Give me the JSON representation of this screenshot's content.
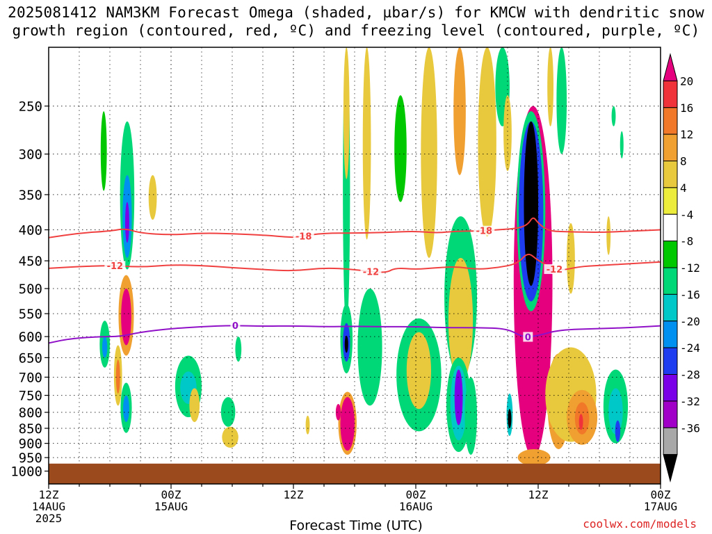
{
  "title_line1": "2025081412 NAM3KM Forecast Omega (shaded, µbar/s) for KMCW with dendritic snow",
  "title_line2": "growth region (contoured, red, ºC) and freezing level (contoured, purple, ºC)",
  "credit": "coolwx.com/models",
  "chart_data": {
    "type": "heatmap",
    "xlabel": "Forecast Time (UTC)",
    "ylabel": "",
    "x_range_hours": [
      0,
      60
    ],
    "x_ticks": [
      {
        "hour": 0,
        "label": "12Z",
        "sub": "14AUG",
        "sub2": "2025"
      },
      {
        "hour": 12,
        "label": "00Z",
        "sub": "15AUG",
        "sub2": ""
      },
      {
        "hour": 24,
        "label": "12Z",
        "sub": "",
        "sub2": ""
      },
      {
        "hour": 36,
        "label": "00Z",
        "sub": "16AUG",
        "sub2": ""
      },
      {
        "hour": 48,
        "label": "12Z",
        "sub": "",
        "sub2": ""
      },
      {
        "hour": 60,
        "label": "00Z",
        "sub": "17AUG",
        "sub2": ""
      }
    ],
    "y_ticks_hpa": [
      250,
      300,
      350,
      400,
      450,
      500,
      550,
      600,
      650,
      700,
      750,
      800,
      850,
      900,
      950,
      1000
    ],
    "y_range_hpa": [
      200,
      1050
    ],
    "ground_level_hpa": 972,
    "colorbar": {
      "labels": [
        "20",
        "16",
        "12",
        "8",
        "4",
        "-4",
        "-8",
        "-12",
        "-16",
        "-20",
        "-24",
        "-28",
        "-32",
        "-36"
      ],
      "colors": [
        "#e5007e",
        "#f0323a",
        "#f07828",
        "#f0a030",
        "#e8c83c",
        "#ecec3c",
        "#ffffff",
        "#00c800",
        "#00d878",
        "#00c8c8",
        "#0090f0",
        "#1e3cf0",
        "#7a00e8",
        "#a000c8",
        "#a8a8a8",
        "#000000"
      ]
    },
    "contours": [
      {
        "label": "-18",
        "color": "#f04040",
        "values_hpa": [
          [
            0,
            412
          ],
          [
            3,
            405
          ],
          [
            6,
            402
          ],
          [
            7.5,
            398
          ],
          [
            9,
            405
          ],
          [
            12,
            408
          ],
          [
            15,
            405
          ],
          [
            18,
            406
          ],
          [
            21,
            408
          ],
          [
            24,
            412
          ],
          [
            24.7,
            410
          ],
          [
            27,
            405
          ],
          [
            30,
            405
          ],
          [
            33,
            404
          ],
          [
            36,
            402
          ],
          [
            38,
            405
          ],
          [
            40,
            402
          ],
          [
            42,
            402
          ],
          [
            44,
            400
          ],
          [
            46,
            398
          ],
          [
            47,
            392
          ],
          [
            47.5,
            380
          ],
          [
            48,
            390
          ],
          [
            49,
            402
          ],
          [
            51,
            403
          ],
          [
            54,
            404
          ],
          [
            57,
            402
          ],
          [
            60,
            400
          ]
        ],
        "label_at_hours": [
          25,
          42.7
        ]
      },
      {
        "label": "-12",
        "color": "#f04040",
        "values_hpa": [
          [
            0,
            463
          ],
          [
            3,
            460
          ],
          [
            6,
            458
          ],
          [
            9,
            461
          ],
          [
            12,
            457
          ],
          [
            15,
            458
          ],
          [
            18,
            462
          ],
          [
            21,
            465
          ],
          [
            24,
            468
          ],
          [
            27,
            462
          ],
          [
            30,
            465
          ],
          [
            33,
            472
          ],
          [
            34,
            462
          ],
          [
            36,
            465
          ],
          [
            38,
            462
          ],
          [
            40,
            460
          ],
          [
            42,
            465
          ],
          [
            44,
            462
          ],
          [
            46,
            455
          ],
          [
            47,
            435
          ],
          [
            48,
            450
          ],
          [
            50,
            468
          ],
          [
            52,
            460
          ],
          [
            54,
            458
          ],
          [
            57,
            455
          ],
          [
            60,
            452
          ]
        ],
        "label_at_hours": [
          6.5,
          31.6,
          49.6
        ]
      },
      {
        "label": "0",
        "color": "#9010c8",
        "values_hpa": [
          [
            0,
            615
          ],
          [
            2,
            605
          ],
          [
            5,
            600
          ],
          [
            7,
            600
          ],
          [
            9,
            590
          ],
          [
            12,
            582
          ],
          [
            15,
            578
          ],
          [
            18,
            575
          ],
          [
            21,
            577
          ],
          [
            24,
            576
          ],
          [
            27,
            578
          ],
          [
            30,
            577
          ],
          [
            33,
            578
          ],
          [
            36,
            578
          ],
          [
            39,
            580
          ],
          [
            42,
            580
          ],
          [
            45,
            582
          ],
          [
            46.5,
            602
          ],
          [
            48,
            598
          ],
          [
            50,
            585
          ],
          [
            54,
            582
          ],
          [
            57,
            580
          ],
          [
            60,
            576
          ]
        ],
        "label_at_hours": [
          18.3,
          47
        ]
      }
    ],
    "omega_cells": [
      {
        "t": 5.5,
        "p": 620,
        "dt": 0.5,
        "dp": 110,
        "v": -10
      },
      {
        "t": 5.5,
        "p": 625,
        "dt": 0.25,
        "dp": 50,
        "v": -16
      },
      {
        "t": 6.8,
        "p": 700,
        "dt": 0.4,
        "dp": 160,
        "v": 6
      },
      {
        "t": 6.8,
        "p": 700,
        "dt": 0.2,
        "dp": 90,
        "v": 12
      },
      {
        "t": 5.4,
        "p": 300,
        "dt": 0.3,
        "dp": 90,
        "v": -6
      },
      {
        "t": 7.7,
        "p": 365,
        "dt": 0.7,
        "dp": 200,
        "v": -8
      },
      {
        "t": 7.7,
        "p": 385,
        "dt": 0.45,
        "dp": 120,
        "v": -16
      },
      {
        "t": 7.7,
        "p": 390,
        "dt": 0.2,
        "dp": 60,
        "v": -24
      },
      {
        "t": 7.6,
        "p": 560,
        "dt": 0.75,
        "dp": 170,
        "v": 8
      },
      {
        "t": 7.6,
        "p": 560,
        "dt": 0.5,
        "dp": 120,
        "v": 20
      },
      {
        "t": 7.6,
        "p": 790,
        "dt": 0.55,
        "dp": 150,
        "v": -8
      },
      {
        "t": 7.6,
        "p": 790,
        "dt": 0.3,
        "dp": 80,
        "v": -16
      },
      {
        "t": 10.2,
        "p": 355,
        "dt": 0.4,
        "dp": 60,
        "v": 6
      },
      {
        "t": 13.7,
        "p": 730,
        "dt": 1.3,
        "dp": 170,
        "v": -8
      },
      {
        "t": 13.7,
        "p": 730,
        "dt": 0.8,
        "dp": 90,
        "v": -12
      },
      {
        "t": 14.3,
        "p": 780,
        "dt": 0.5,
        "dp": 100,
        "v": 6
      },
      {
        "t": 18.6,
        "p": 630,
        "dt": 0.3,
        "dp": 60,
        "v": -8
      },
      {
        "t": 17.6,
        "p": 800,
        "dt": 0.7,
        "dp": 90,
        "v": -8
      },
      {
        "t": 17.8,
        "p": 880,
        "dt": 0.8,
        "dp": 70,
        "v": 6
      },
      {
        "t": 25.4,
        "p": 840,
        "dt": 0.2,
        "dp": 60,
        "v": 6
      },
      {
        "t": 29.2,
        "p": 330,
        "dt": 0.35,
        "dp": 500,
        "v": -8
      },
      {
        "t": 29.2,
        "p": 250,
        "dt": 0.3,
        "dp": 160,
        "v": 6
      },
      {
        "t": 29.2,
        "p": 610,
        "dt": 0.6,
        "dp": 160,
        "v": -10
      },
      {
        "t": 29.2,
        "p": 615,
        "dt": 0.35,
        "dp": 90,
        "v": -20
      },
      {
        "t": 29.2,
        "p": 618,
        "dt": 0.12,
        "dp": 40,
        "v": -36
      },
      {
        "t": 29.3,
        "p": 840,
        "dt": 0.9,
        "dp": 200,
        "v": 8
      },
      {
        "t": 29.3,
        "p": 840,
        "dt": 0.7,
        "dp": 170,
        "v": 20
      },
      {
        "t": 28.4,
        "p": 800,
        "dt": 0.25,
        "dp": 50,
        "v": 20
      },
      {
        "t": 31.2,
        "p": 290,
        "dt": 0.4,
        "dp": 250,
        "v": 6
      },
      {
        "t": 31.5,
        "p": 640,
        "dt": 1.2,
        "dp": 280,
        "v": -8
      },
      {
        "t": 34.5,
        "p": 300,
        "dt": 0.6,
        "dp": 120,
        "v": -6
      },
      {
        "t": 36.3,
        "p": 710,
        "dt": 2.2,
        "dp": 300,
        "v": -8
      },
      {
        "t": 36.3,
        "p": 690,
        "dt": 1.2,
        "dp": 200,
        "v": 6
      },
      {
        "t": 37.3,
        "p": 305,
        "dt": 0.8,
        "dp": 280,
        "v": 6
      },
      {
        "t": 40.3,
        "p": 260,
        "dt": 0.6,
        "dp": 130,
        "v": 8
      },
      {
        "t": 40.4,
        "p": 540,
        "dt": 1.6,
        "dp": 320,
        "v": -8
      },
      {
        "t": 40.4,
        "p": 580,
        "dt": 1.2,
        "dp": 270,
        "v": 6
      },
      {
        "t": 40.2,
        "p": 790,
        "dt": 1.2,
        "dp": 280,
        "v": -8
      },
      {
        "t": 40.2,
        "p": 780,
        "dt": 0.8,
        "dp": 220,
        "v": -12
      },
      {
        "t": 40.2,
        "p": 760,
        "dt": 0.4,
        "dp": 160,
        "v": -24
      },
      {
        "t": 41.4,
        "p": 820,
        "dt": 0.6,
        "dp": 240,
        "v": -8
      },
      {
        "t": 43.0,
        "p": 300,
        "dt": 0.9,
        "dp": 220,
        "v": 6
      },
      {
        "t": 44.5,
        "p": 230,
        "dt": 0.7,
        "dp": 80,
        "v": -8
      },
      {
        "t": 45.0,
        "p": 280,
        "dt": 0.4,
        "dp": 80,
        "v": 6
      },
      {
        "t": 45.2,
        "p": 810,
        "dt": 0.3,
        "dp": 130,
        "v": -12
      },
      {
        "t": 45.2,
        "p": 820,
        "dt": 0.12,
        "dp": 60,
        "v": -36
      },
      {
        "t": 46.3,
        "p": 590,
        "dt": 0.2,
        "dp": 180,
        "v": -8
      },
      {
        "t": 47.5,
        "p": 600,
        "dt": 1.9,
        "dp": 700,
        "v": 20
      },
      {
        "t": 47.3,
        "p": 400,
        "dt": 1.4,
        "dp": 290,
        "v": -8
      },
      {
        "t": 47.3,
        "p": 395,
        "dt": 1.2,
        "dp": 260,
        "v": -20
      },
      {
        "t": 47.3,
        "p": 380,
        "dt": 0.7,
        "dp": 230,
        "v": -36
      },
      {
        "t": 47.6,
        "p": 950,
        "dt": 1.6,
        "dp": 60,
        "v": 8
      },
      {
        "t": 49.2,
        "p": 230,
        "dt": 0.3,
        "dp": 80,
        "v": 6
      },
      {
        "t": 50.3,
        "p": 250,
        "dt": 0.5,
        "dp": 100,
        "v": -8
      },
      {
        "t": 50.0,
        "p": 780,
        "dt": 1.1,
        "dp": 280,
        "v": 8
      },
      {
        "t": 49.8,
        "p": 760,
        "dt": 0.7,
        "dp": 200,
        "v": 12
      },
      {
        "t": 49.6,
        "p": 750,
        "dt": 0.3,
        "dp": 120,
        "v": 16
      },
      {
        "t": 51.2,
        "p": 760,
        "dt": 2.5,
        "dp": 270,
        "v": 6
      },
      {
        "t": 52.3,
        "p": 820,
        "dt": 1.5,
        "dp": 170,
        "v": 8
      },
      {
        "t": 52.3,
        "p": 820,
        "dt": 0.7,
        "dp": 100,
        "v": 12
      },
      {
        "t": 52.2,
        "p": 830,
        "dt": 0.2,
        "dp": 50,
        "v": 16
      },
      {
        "t": 51.2,
        "p": 450,
        "dt": 0.4,
        "dp": 120,
        "v": 6
      },
      {
        "t": 55.6,
        "p": 790,
        "dt": 1.2,
        "dp": 220,
        "v": -8
      },
      {
        "t": 55.6,
        "p": 800,
        "dt": 0.7,
        "dp": 140,
        "v": -12
      },
      {
        "t": 55.8,
        "p": 860,
        "dt": 0.25,
        "dp": 70,
        "v": -20
      },
      {
        "t": 54.9,
        "p": 410,
        "dt": 0.2,
        "dp": 60,
        "v": 6
      },
      {
        "t": 56.2,
        "p": 290,
        "dt": 0.15,
        "dp": 30,
        "v": -8
      },
      {
        "t": 55.4,
        "p": 260,
        "dt": 0.2,
        "dp": 20,
        "v": -8
      }
    ]
  }
}
